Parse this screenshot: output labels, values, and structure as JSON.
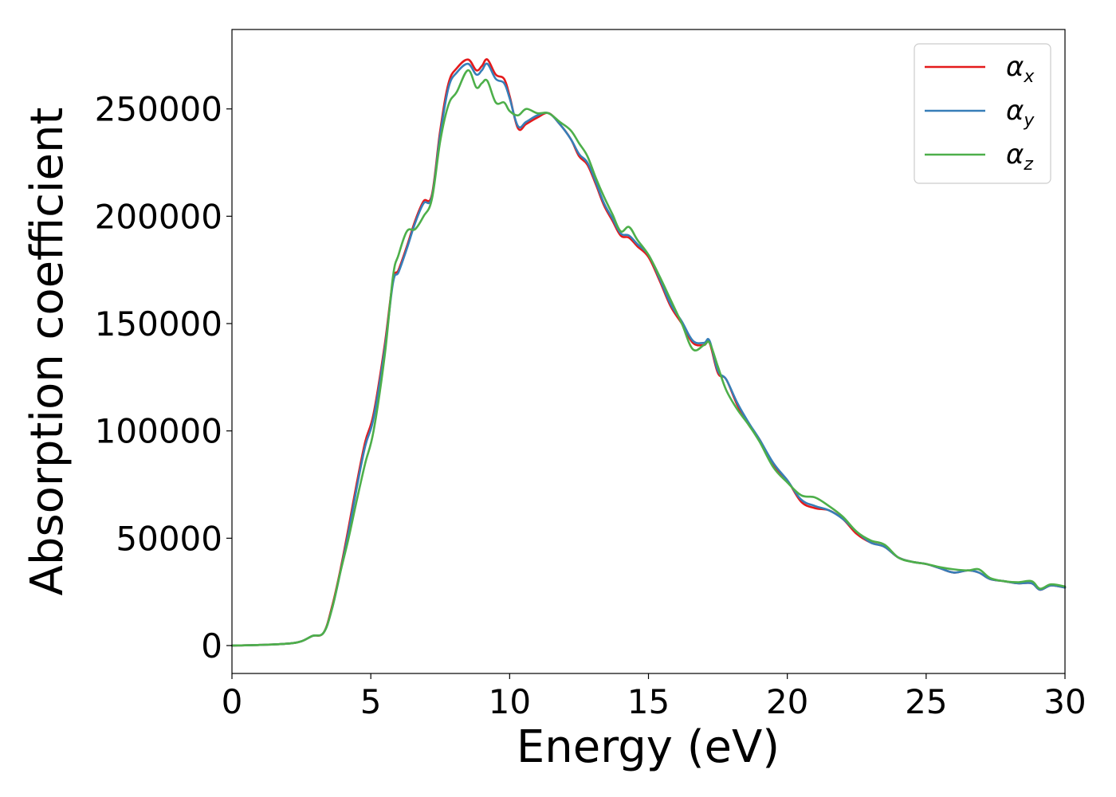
{
  "chart_data": {
    "type": "line",
    "title": "",
    "xlabel": "Energy (eV)",
    "ylabel": "Absorption coefficient",
    "xlim": [
      0,
      30
    ],
    "ylim": [
      -13000,
      287000
    ],
    "xticks": [
      0,
      5,
      10,
      15,
      20,
      25,
      30
    ],
    "yticks": [
      0,
      50000,
      100000,
      150000,
      200000,
      250000
    ],
    "xtick_labels": [
      "0",
      "5",
      "10",
      "15",
      "20",
      "25",
      "30"
    ],
    "ytick_labels": [
      "0",
      "50000",
      "100000",
      "150000",
      "200000",
      "250000"
    ],
    "grid": false,
    "legend_position": "top-right",
    "series": [
      {
        "name": "α_x",
        "legend_base": "α",
        "legend_sub": "x",
        "color": "#e41a1c",
        "x": [
          0,
          1,
          2,
          2.5,
          2.9,
          3.3,
          3.6,
          3.9,
          4.2,
          4.5,
          4.8,
          5.1,
          5.5,
          5.8,
          6.0,
          6.3,
          6.6,
          6.9,
          7.2,
          7.5,
          7.8,
          8.1,
          8.5,
          8.8,
          9.0,
          9.2,
          9.5,
          9.8,
          10.0,
          10.3,
          10.6,
          11.0,
          11.4,
          11.8,
          12.2,
          12.5,
          12.8,
          13.1,
          13.4,
          13.7,
          14.0,
          14.3,
          14.6,
          15.0,
          15.4,
          15.8,
          16.2,
          16.6,
          17.0,
          17.2,
          17.5,
          17.8,
          18.2,
          18.6,
          19.0,
          19.5,
          20.0,
          20.5,
          21.0,
          21.5,
          22.0,
          22.5,
          23.0,
          23.5,
          24.0,
          24.5,
          25.0,
          25.5,
          26.0,
          26.5,
          26.9,
          27.3,
          27.8,
          28.3,
          28.8,
          29.1,
          29.5,
          30.0
        ],
        "y": [
          0,
          300,
          900,
          2000,
          4500,
          6000,
          18000,
          35000,
          55000,
          76000,
          95000,
          108000,
          140000,
          170000,
          175000,
          186000,
          198000,
          207000,
          210000,
          240000,
          262000,
          269000,
          273000,
          268000,
          270000,
          273000,
          266000,
          264000,
          256000,
          241000,
          243000,
          246000,
          248000,
          243000,
          236000,
          228000,
          224000,
          215000,
          205000,
          198000,
          191000,
          190000,
          186000,
          181000,
          170000,
          158000,
          150000,
          141000,
          140000,
          141000,
          127000,
          124000,
          112000,
          103000,
          96000,
          84000,
          77000,
          67000,
          64000,
          63000,
          59000,
          52000,
          48000,
          46000,
          41000,
          39000,
          38000,
          36000,
          34000,
          35000,
          34000,
          31000,
          30000,
          29000,
          29000,
          26000,
          28000,
          27000
        ]
      },
      {
        "name": "α_y",
        "legend_base": "α",
        "legend_sub": "y",
        "color": "#377eb8",
        "x": [
          0,
          1,
          2,
          2.5,
          2.9,
          3.3,
          3.6,
          3.9,
          4.2,
          4.5,
          4.8,
          5.1,
          5.5,
          5.8,
          6.0,
          6.3,
          6.6,
          6.9,
          7.2,
          7.5,
          7.8,
          8.1,
          8.5,
          8.8,
          9.0,
          9.2,
          9.5,
          9.8,
          10.0,
          10.3,
          10.6,
          11.0,
          11.4,
          11.8,
          12.2,
          12.5,
          12.8,
          13.1,
          13.4,
          13.7,
          14.0,
          14.3,
          14.6,
          15.0,
          15.4,
          15.8,
          16.2,
          16.6,
          17.0,
          17.2,
          17.5,
          17.8,
          18.2,
          18.6,
          19.0,
          19.5,
          20.0,
          20.5,
          21.0,
          21.5,
          22.0,
          22.5,
          23.0,
          23.5,
          24.0,
          24.5,
          25.0,
          25.5,
          26.0,
          26.5,
          26.9,
          27.3,
          27.8,
          28.3,
          28.8,
          29.1,
          29.5,
          30.0
        ],
        "y": [
          0,
          300,
          900,
          2000,
          4500,
          6000,
          17000,
          34000,
          53000,
          74000,
          93000,
          106000,
          138000,
          169000,
          174000,
          185000,
          197000,
          206000,
          209000,
          238000,
          260000,
          267000,
          271000,
          266000,
          268000,
          271000,
          264000,
          262000,
          255000,
          242000,
          244000,
          247000,
          248000,
          243000,
          236000,
          229000,
          225000,
          216000,
          206000,
          199000,
          192000,
          191000,
          187000,
          182000,
          171000,
          159000,
          151000,
          142000,
          141000,
          142000,
          128000,
          124000,
          113000,
          104000,
          96000,
          85000,
          77000,
          68000,
          65000,
          63000,
          59000,
          53000,
          48000,
          46000,
          41000,
          39000,
          38000,
          36000,
          34000,
          35000,
          34000,
          31000,
          30000,
          29000,
          29000,
          26000,
          28000,
          27000
        ]
      },
      {
        "name": "α_z",
        "legend_base": "α",
        "legend_sub": "z",
        "color": "#4daf4a",
        "x": [
          0,
          1,
          2,
          2.5,
          2.9,
          3.3,
          3.6,
          3.9,
          4.2,
          4.5,
          4.8,
          5.1,
          5.5,
          5.8,
          6.0,
          6.3,
          6.6,
          6.9,
          7.2,
          7.5,
          7.8,
          8.1,
          8.5,
          8.8,
          9.0,
          9.2,
          9.5,
          9.8,
          10.0,
          10.3,
          10.6,
          11.0,
          11.4,
          11.8,
          12.2,
          12.5,
          12.8,
          13.1,
          13.4,
          13.7,
          14.0,
          14.3,
          14.6,
          15.0,
          15.4,
          15.8,
          16.2,
          16.6,
          17.0,
          17.2,
          17.5,
          17.8,
          18.2,
          18.6,
          19.0,
          19.5,
          20.0,
          20.5,
          21.0,
          21.5,
          22.0,
          22.5,
          23.0,
          23.5,
          24.0,
          24.5,
          25.0,
          25.5,
          26.0,
          26.5,
          26.9,
          27.3,
          27.8,
          28.3,
          28.8,
          29.1,
          29.5,
          30.0
        ],
        "y": [
          0,
          300,
          900,
          2000,
          4500,
          6000,
          17000,
          34000,
          50000,
          68000,
          85000,
          100000,
          135000,
          172000,
          182000,
          193000,
          194000,
          200000,
          208000,
          235000,
          252000,
          258000,
          268000,
          260000,
          262000,
          263000,
          253000,
          253000,
          249000,
          247000,
          250000,
          248000,
          248000,
          244000,
          240000,
          234000,
          228000,
          218000,
          209000,
          201000,
          193000,
          195000,
          189000,
          182000,
          172000,
          161000,
          150000,
          138000,
          140000,
          141000,
          130000,
          119000,
          110000,
          103000,
          95000,
          83000,
          76000,
          70000,
          69000,
          65000,
          60000,
          53000,
          49000,
          47000,
          41000,
          39000,
          38000,
          36500,
          35500,
          35000,
          35500,
          31500,
          30000,
          29500,
          30000,
          26500,
          28500,
          27500
        ]
      }
    ]
  }
}
